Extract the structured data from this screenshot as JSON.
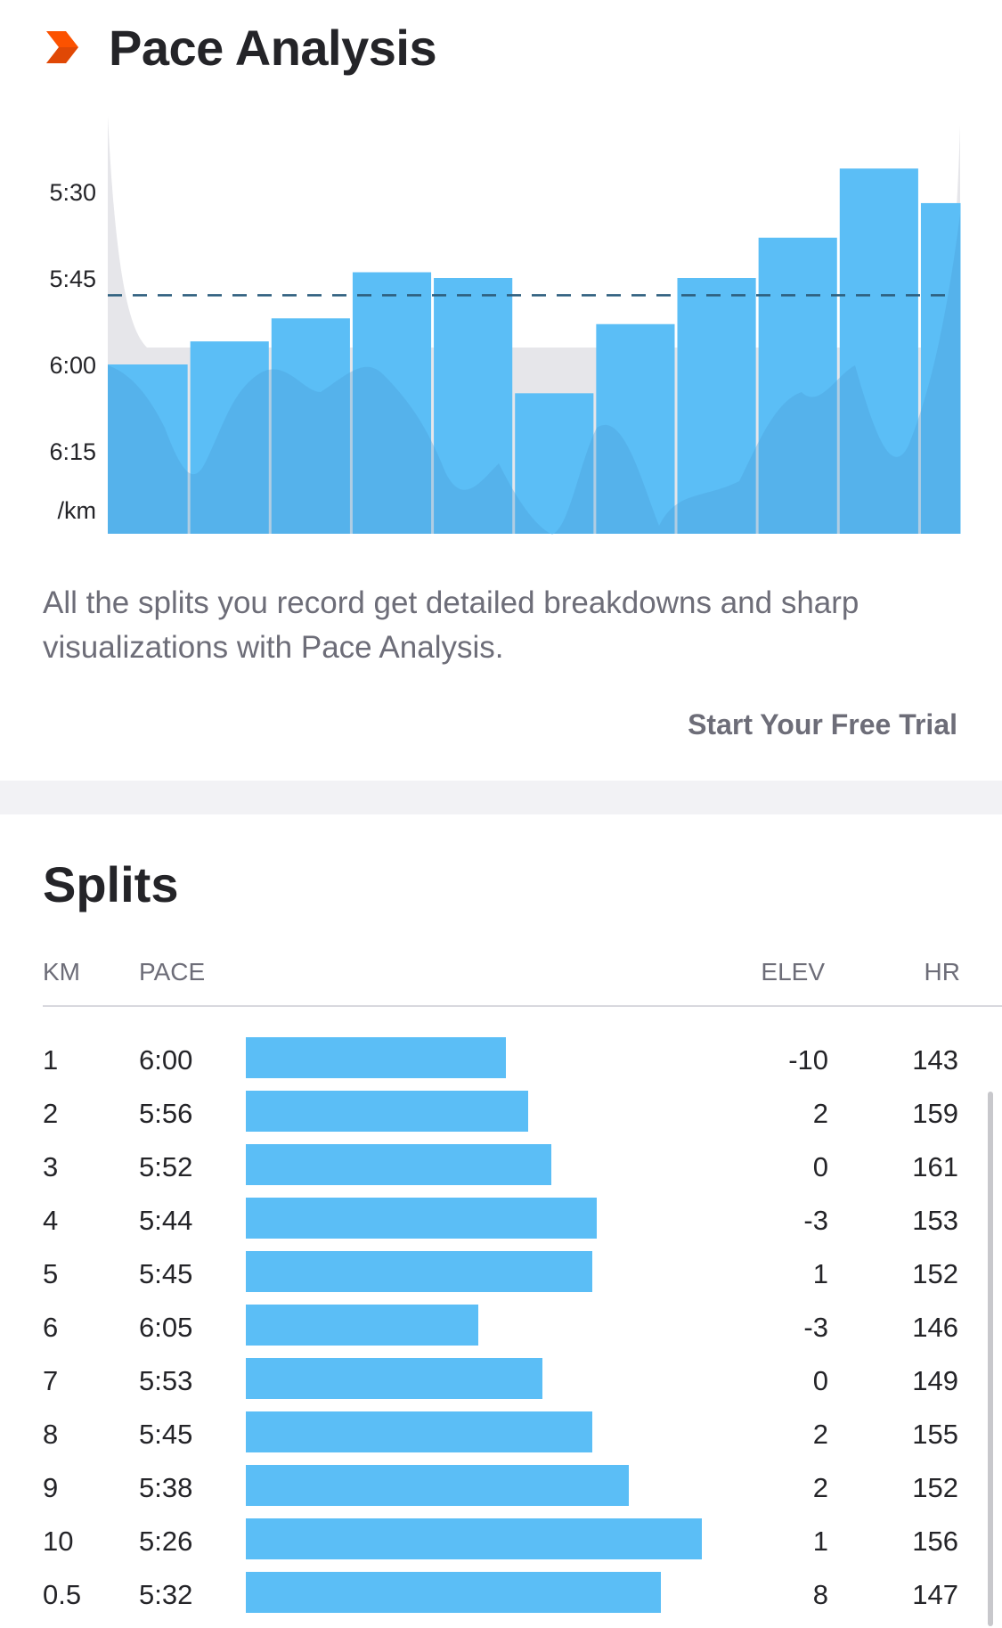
{
  "header": {
    "title": "Pace Analysis",
    "icon": "strava-chevron-icon"
  },
  "chart_data": {
    "type": "bar",
    "categories": [
      "1",
      "2",
      "3",
      "4",
      "5",
      "6",
      "7",
      "8",
      "9",
      "10",
      "0.5"
    ],
    "values": [
      "6:00",
      "5:56",
      "5:52",
      "5:44",
      "5:45",
      "6:05",
      "5:53",
      "5:45",
      "5:38",
      "5:26",
      "5:32"
    ],
    "values_seconds_per_km": [
      360,
      356,
      352,
      344,
      345,
      365,
      353,
      345,
      338,
      326,
      332
    ],
    "average_pace": "5:48",
    "yticks": [
      "5:30",
      "5:45",
      "6:00",
      "6:15"
    ],
    "yunit": "/km",
    "y_reversed": true,
    "ylim": [
      "5:12",
      "6:30"
    ],
    "bar_color": "#5bbef6",
    "elevation_fill_color": "#e6e6ea",
    "avg_line_color": "#2e5f7e",
    "xlabel": "",
    "ylabel": ""
  },
  "description": "All the splits you record get detailed breakdowns and sharp visualizations with Pace Analysis.",
  "cta_label": "Start Your Free Trial",
  "splits": {
    "title": "Splits",
    "headers": {
      "km": "KM",
      "pace": "PACE",
      "elev": "ELEV",
      "hr": "HR"
    },
    "rows": [
      {
        "km": "1",
        "pace": "6:00",
        "elev": "-10",
        "hr": "143",
        "bar_fraction": 0.57
      },
      {
        "km": "2",
        "pace": "5:56",
        "elev": "2",
        "hr": "159",
        "bar_fraction": 0.62
      },
      {
        "km": "3",
        "pace": "5:52",
        "elev": "0",
        "hr": "161",
        "bar_fraction": 0.67
      },
      {
        "km": "4",
        "pace": "5:44",
        "elev": "-3",
        "hr": "153",
        "bar_fraction": 0.77
      },
      {
        "km": "5",
        "pace": "5:45",
        "elev": "1",
        "hr": "152",
        "bar_fraction": 0.76
      },
      {
        "km": "6",
        "pace": "6:05",
        "elev": "-3",
        "hr": "146",
        "bar_fraction": 0.51
      },
      {
        "km": "7",
        "pace": "5:53",
        "elev": "0",
        "hr": "149",
        "bar_fraction": 0.65
      },
      {
        "km": "8",
        "pace": "5:45",
        "elev": "2",
        "hr": "155",
        "bar_fraction": 0.76
      },
      {
        "km": "9",
        "pace": "5:38",
        "elev": "2",
        "hr": "152",
        "bar_fraction": 0.84
      },
      {
        "km": "10",
        "pace": "5:26",
        "elev": "1",
        "hr": "156",
        "bar_fraction": 1.0
      },
      {
        "km": "0.5",
        "pace": "5:32",
        "elev": "8",
        "hr": "147",
        "bar_fraction": 0.91
      }
    ]
  }
}
